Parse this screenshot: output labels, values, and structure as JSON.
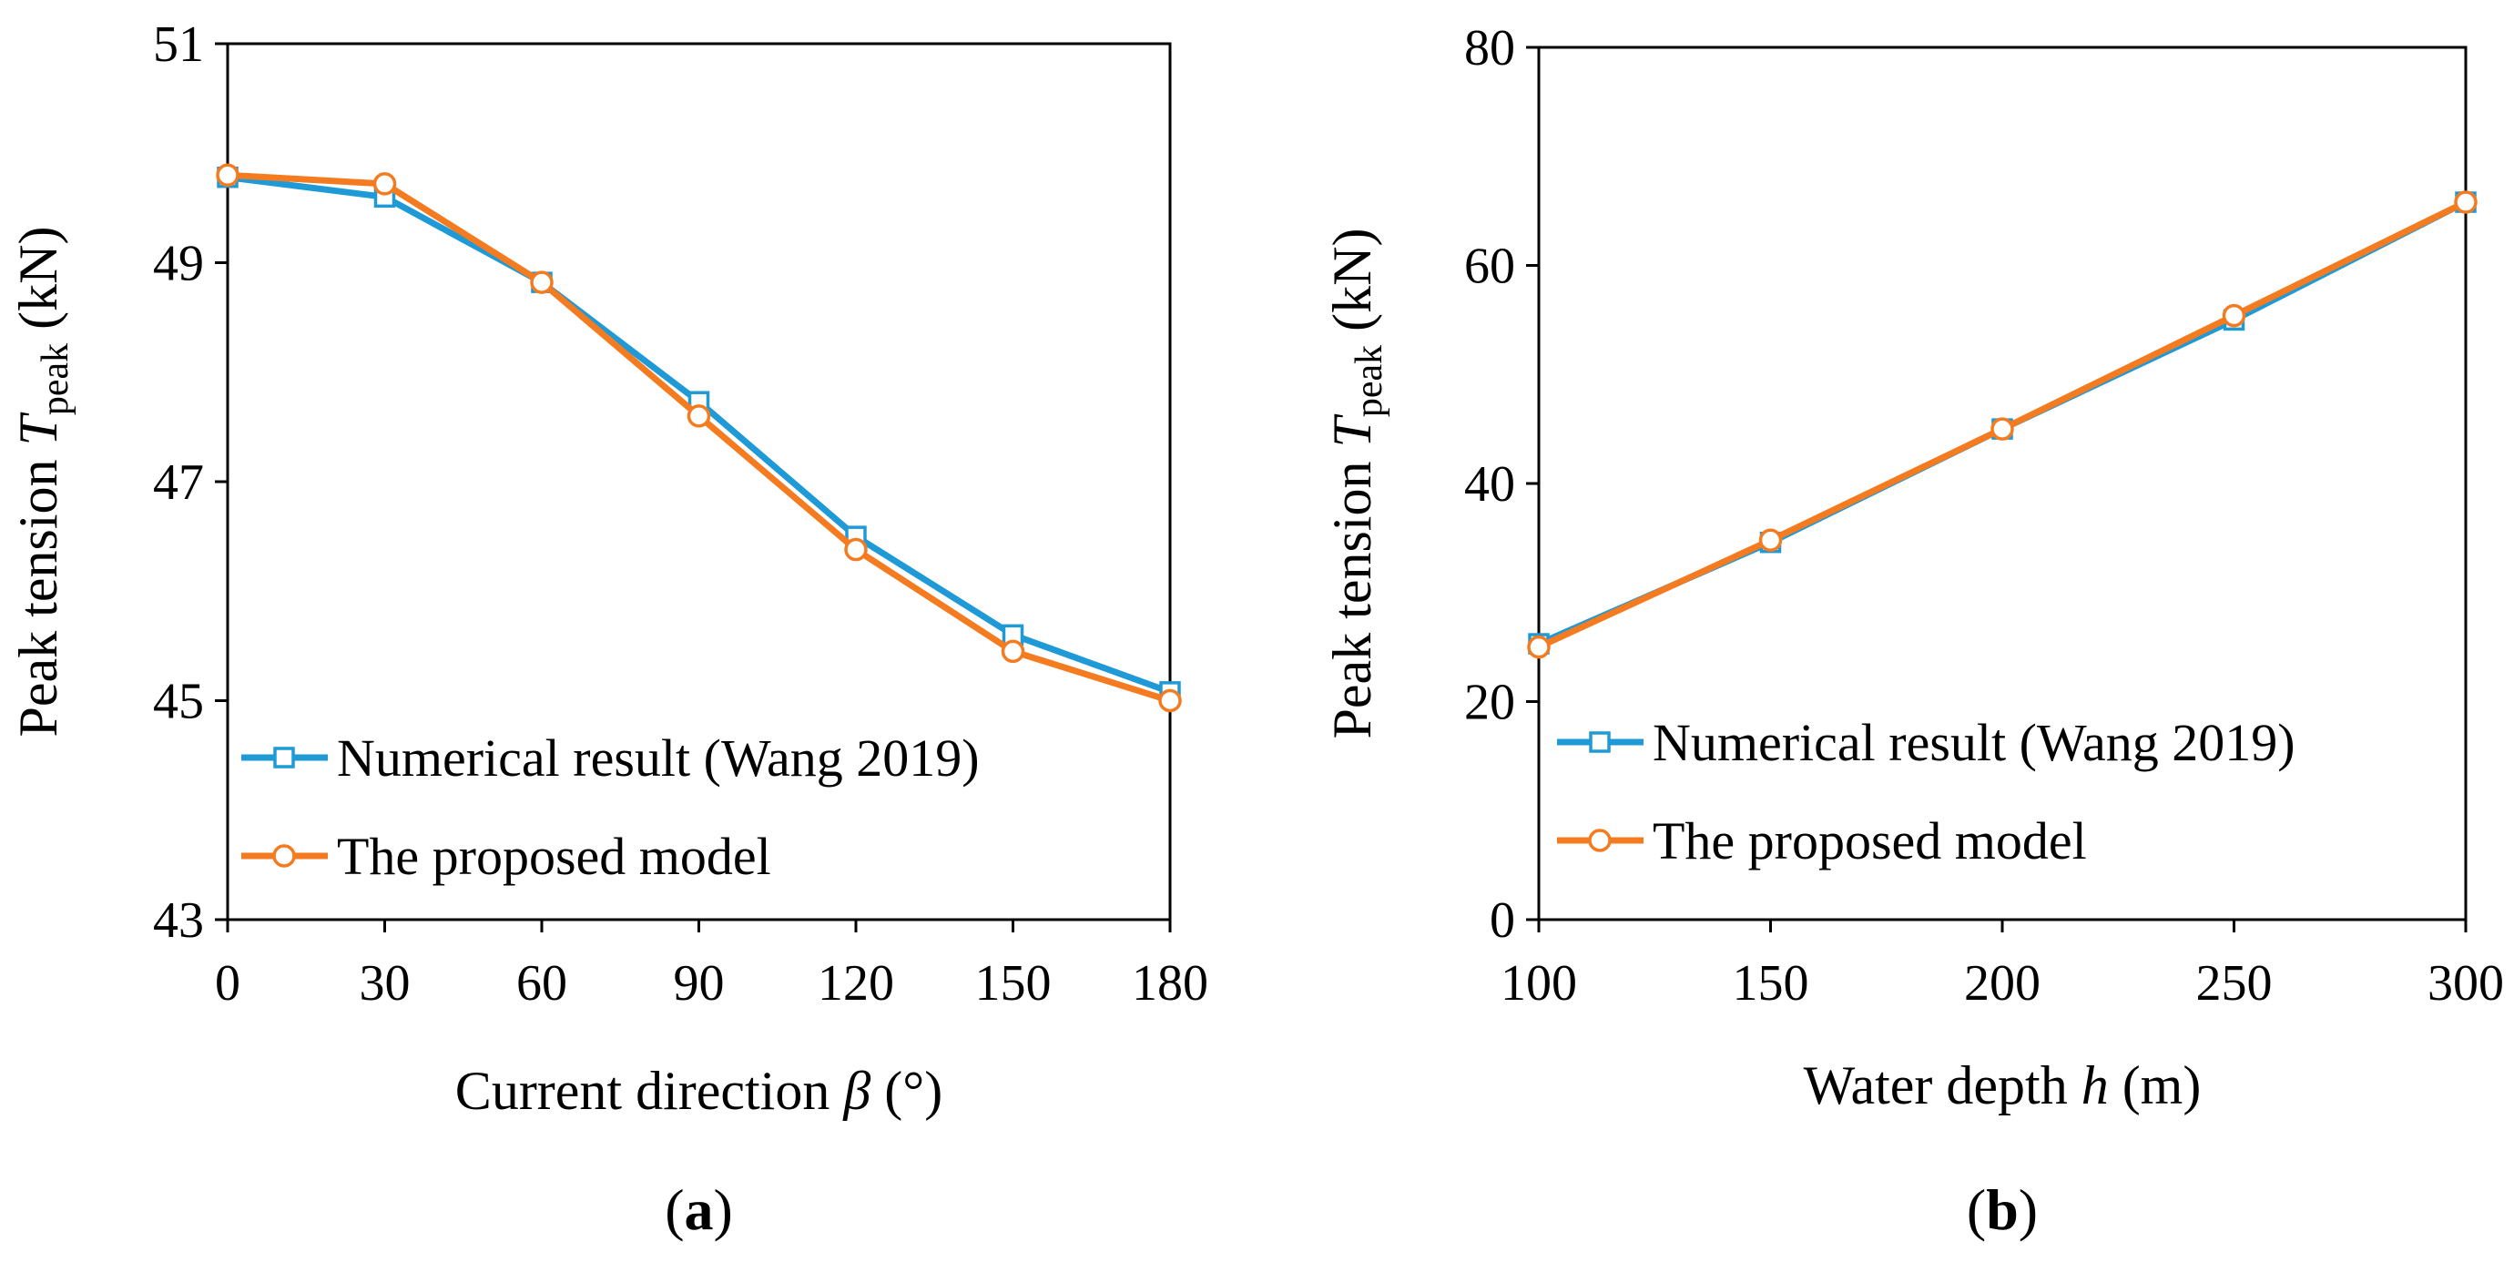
{
  "colors": {
    "numerical": "#1f9ad6",
    "proposed": "#f47b20",
    "axis": "#000000"
  },
  "chart_data": [
    {
      "type": "line",
      "panel_label": {
        "open": "(",
        "letter": "a",
        "close": ")"
      },
      "xlabel": {
        "prefix": "Current direction ",
        "symbol": "β",
        "suffix": " (°)"
      },
      "ylabel": {
        "prefix": "Peak tension ",
        "symbol": "T",
        "subscript": "peak",
        "suffix": " (kN)"
      },
      "xlim": [
        0,
        180
      ],
      "ylim": [
        43,
        51
      ],
      "xticks": [
        0,
        30,
        60,
        90,
        120,
        150,
        180
      ],
      "yticks": [
        43,
        45,
        47,
        49,
        51
      ],
      "grid": false,
      "legend_position": "bottom-left",
      "x": [
        0,
        30,
        60,
        90,
        120,
        150,
        180
      ],
      "series": [
        {
          "name": "Numerical result (Wang 2019)",
          "marker": "square",
          "color": "#1f9ad6",
          "values": [
            49.78,
            49.6,
            48.82,
            47.73,
            46.5,
            45.6,
            45.08
          ]
        },
        {
          "name": "The proposed model",
          "marker": "circle",
          "color": "#f47b20",
          "values": [
            49.8,
            49.72,
            48.82,
            47.6,
            46.38,
            45.45,
            45.0
          ]
        }
      ]
    },
    {
      "type": "line",
      "panel_label": {
        "open": "(",
        "letter": "b",
        "close": ")"
      },
      "xlabel": {
        "prefix": "Water depth ",
        "symbol": "h",
        "suffix": " (m)"
      },
      "ylabel": {
        "prefix": "Peak tension ",
        "symbol": "T",
        "subscript": "peak",
        "suffix": " (kN)"
      },
      "xlim": [
        100,
        300
      ],
      "ylim": [
        0,
        80
      ],
      "xticks": [
        100,
        150,
        200,
        250,
        300
      ],
      "yticks": [
        0,
        20,
        40,
        60,
        80
      ],
      "grid": false,
      "legend_position": "bottom-left",
      "x": [
        100,
        150,
        200,
        250,
        300
      ],
      "series": [
        {
          "name": "Numerical result (Wang 2019)",
          "marker": "square",
          "color": "#1f9ad6",
          "values": [
            25.3,
            34.6,
            45.0,
            55.0,
            65.8
          ]
        },
        {
          "name": "The proposed model",
          "marker": "circle",
          "color": "#f47b20",
          "values": [
            25.0,
            34.8,
            45.0,
            55.4,
            65.8
          ]
        }
      ]
    }
  ]
}
